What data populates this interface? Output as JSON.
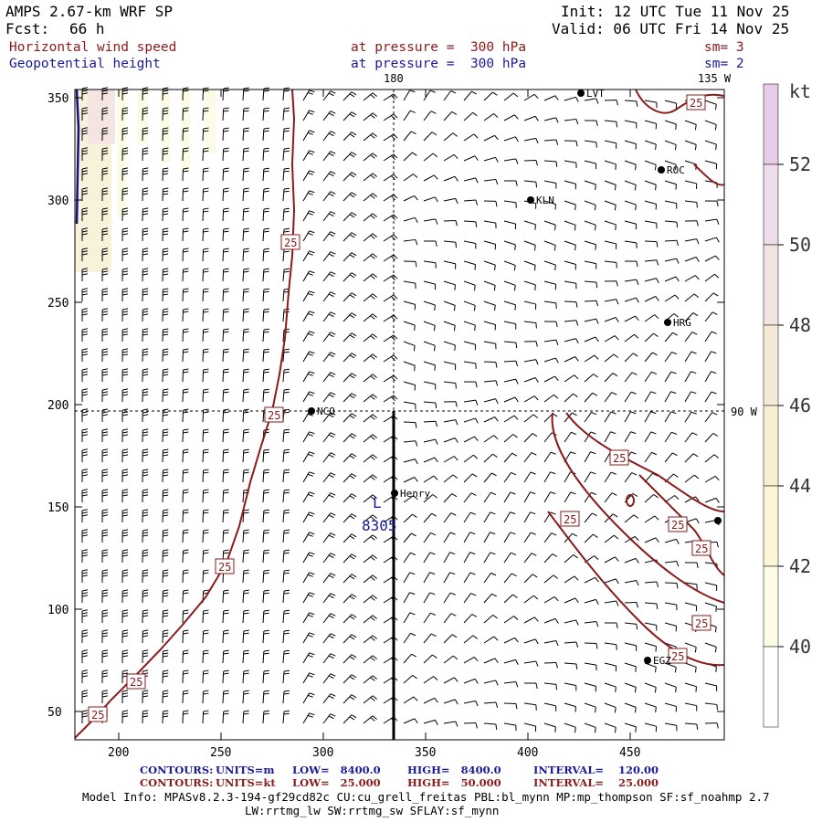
{
  "header": {
    "title": "AMPS 2.67-km WRF SP",
    "fcst_label": "Fcst:",
    "fcst_value": "66 h",
    "init": "Init: 12 UTC Tue 11 Nov 25",
    "valid": "Valid: 06 UTC Fri 14 Nov 25",
    "field1": "Horizontal wind speed",
    "field2": "Geopotential height",
    "level1": "at pressure =  300 hPa",
    "level2": "at pressure =  300 hPa",
    "sm1": "sm= 3",
    "sm2": "sm= 2"
  },
  "map": {
    "x_ticks": [
      "200",
      "250",
      "300",
      "350",
      "400",
      "450"
    ],
    "y_ticks": [
      "350",
      "300",
      "250",
      "200",
      "150",
      "100",
      "50"
    ],
    "lon_labels": {
      "top_left": "180",
      "top_right": "135 W",
      "right": "90 W"
    },
    "stations": [
      "LVT",
      "ROC",
      "KLN",
      "HRG",
      "NCO",
      "Henry",
      "EGZ"
    ],
    "low_marker": "L",
    "low_value": "8305",
    "contour_label": "25"
  },
  "colorbar": {
    "unit": "kt",
    "levels": [
      "52",
      "50",
      "48",
      "46",
      "44",
      "42",
      "40"
    ],
    "colors": [
      "#e6cce6",
      "#eedcea",
      "#f3e3e3",
      "#f5e9d7",
      "#f7efd2",
      "#faf6d5",
      "#fbfbe6",
      "#ffffff"
    ]
  },
  "footer": {
    "line1_label": "CONTOURS:",
    "line1_units": "UNITS=m",
    "line1_low": "LOW=   8400.0",
    "line1_high": "HIGH=   8400.0",
    "line1_interval": "INTERVAL=    120.00",
    "line2_label": "CONTOURS:",
    "line2_units": "UNITS=kt",
    "line2_low": "LOW=   25.000",
    "line2_high": "HIGH=   50.000",
    "line2_interval": "INTERVAL=    25.000",
    "model_info1": "Model Info: MPASv8.2.3-194-gf29cd82c CU:cu_grell_freitas PBL:bl_mynn MP:mp_thompson SF:sf_noahmp 2.7",
    "model_info2": "LW:rrtmg_lw SW:rrtmg_sw SFLAY:sf_mynn"
  }
}
